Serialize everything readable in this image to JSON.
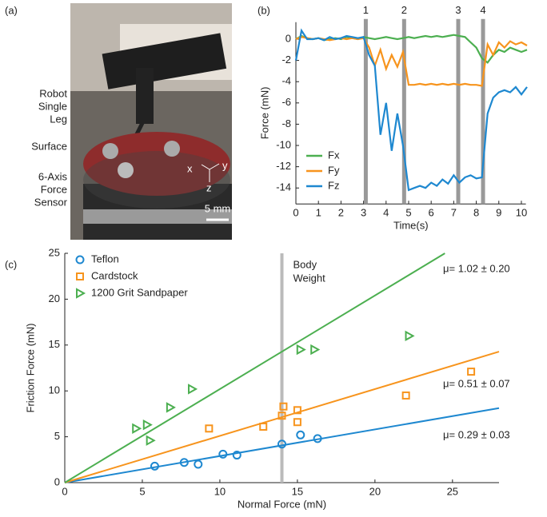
{
  "panel_labels": [
    "(a)",
    "(b)",
    "(c)"
  ],
  "photo": {
    "labels": [
      [
        "Robot",
        "Single",
        "Leg"
      ],
      [
        "Surface"
      ],
      [
        "6-Axis",
        "Force",
        "Sensor"
      ]
    ],
    "axes": [
      "x",
      "y",
      "z"
    ],
    "scale_bar": "5 mm"
  },
  "chart_data": [
    {
      "type": "line",
      "xlabel": "Time(s)",
      "ylabel": "Force (mN)",
      "xlim": [
        0,
        10.2
      ],
      "ylim": [
        -15.5,
        1.6
      ],
      "xticks": [
        0,
        1,
        2,
        3,
        4,
        5,
        6,
        7,
        8,
        9,
        10
      ],
      "yticks": [
        0,
        -2,
        -4,
        -6,
        -8,
        -10,
        -12,
        -14
      ],
      "markers": [
        {
          "value": 3.1,
          "label": "1"
        },
        {
          "value": 4.8,
          "label": "2"
        },
        {
          "value": 7.2,
          "label": "3"
        },
        {
          "value": 8.3,
          "label": "4"
        }
      ],
      "x": [
        0,
        0.25,
        0.5,
        0.75,
        1,
        1.25,
        1.5,
        1.75,
        2,
        2.25,
        2.5,
        2.75,
        3,
        3.25,
        3.5,
        3.75,
        4,
        4.25,
        4.5,
        4.75,
        5,
        5.25,
        5.5,
        5.75,
        6,
        6.25,
        6.5,
        6.75,
        7,
        7.25,
        7.5,
        7.75,
        8,
        8.25,
        8.5,
        8.75,
        9,
        9.25,
        9.5,
        9.75,
        10,
        10.25
      ],
      "series": [
        {
          "name": "Fx",
          "color": "#4caf50",
          "values": [
            0,
            0.3,
            0.1,
            0,
            0.1,
            -0.1,
            0,
            0.1,
            0,
            0.2,
            0.1,
            0,
            0.2,
            0.1,
            0,
            0.1,
            0.2,
            0.1,
            0,
            0.1,
            0.2,
            0.1,
            0.2,
            0.3,
            0.2,
            0.3,
            0.2,
            0.3,
            0.4,
            0.3,
            0.2,
            -0.3,
            -0.8,
            -1.8,
            -2.2,
            -1.5,
            -1.0,
            -1.2,
            -0.8,
            -1.0,
            -1.2,
            -1.0
          ]
        },
        {
          "name": "Fy",
          "color": "#f7941d",
          "values": [
            0,
            0.2,
            0.1,
            0,
            0.1,
            0,
            -0.1,
            0,
            0.1,
            0,
            0.1,
            0,
            0.1,
            -0.8,
            -2.5,
            -1.0,
            -2.8,
            -1.5,
            -2.6,
            -1.2,
            -4.3,
            -4.3,
            -4.2,
            -4.3,
            -4.2,
            -4.3,
            -4.2,
            -4.3,
            -4.2,
            -4.3,
            -4.2,
            -4.3,
            -4.3,
            -4.4,
            -0.5,
            -1.5,
            -0.3,
            -0.8,
            -0.2,
            -0.5,
            -0.3,
            -0.6
          ]
        },
        {
          "name": "Fz",
          "color": "#1e88d0",
          "values": [
            -2,
            0.8,
            0,
            0,
            0.1,
            -0.1,
            0.2,
            0,
            0.1,
            0.3,
            0.2,
            0.1,
            0.2,
            -1.5,
            -2.5,
            -9,
            -6,
            -10.5,
            -7,
            -10,
            -14.2,
            -14,
            -13.8,
            -14,
            -13.5,
            -13.8,
            -13.2,
            -13.6,
            -12.8,
            -13.5,
            -13,
            -12.8,
            -13.1,
            -13,
            -7,
            -5.5,
            -5,
            -4.8,
            -5,
            -4.5,
            -5.2,
            -4.5
          ]
        }
      ]
    },
    {
      "type": "scatter",
      "xlabel": "Normal Force (mN)",
      "ylabel": "Friction Force (mN)",
      "xlim": [
        0,
        28
      ],
      "ylim": [
        0,
        25
      ],
      "xticks": [
        0,
        5,
        10,
        15,
        20,
        25
      ],
      "yticks": [
        0,
        5,
        10,
        15,
        20,
        25
      ],
      "annotation": {
        "x": 14,
        "label_lines": [
          "Body",
          "Weight"
        ]
      },
      "series": [
        {
          "name": "Teflon",
          "color": "#1e88d0",
          "marker": "circle",
          "x": [
            5.8,
            7.7,
            8.6,
            10.2,
            11.1,
            14,
            15.2,
            16.3
          ],
          "values": [
            1.8,
            2.2,
            2.0,
            3.1,
            3.0,
            4.2,
            5.2,
            4.8
          ],
          "fit": {
            "slope": 0.29,
            "label": "μ= 0.29 ± 0.03"
          }
        },
        {
          "name": "Cardstock",
          "color": "#f7941d",
          "marker": "square",
          "x": [
            9.3,
            12.8,
            14.1,
            14,
            15,
            15,
            22,
            26.2
          ],
          "values": [
            5.9,
            6.1,
            8.3,
            7.3,
            7.9,
            6.6,
            9.5,
            12.1
          ],
          "fit": {
            "slope": 0.51,
            "label": "μ= 0.51 ± 0.07"
          }
        },
        {
          "name": "1200 Grit Sandpaper",
          "color": "#4caf50",
          "marker": "triangle",
          "x": [
            4.6,
            5.3,
            5.5,
            6.8,
            8.2,
            15.2,
            16.1,
            22.2
          ],
          "values": [
            5.9,
            6.3,
            4.6,
            8.2,
            10.2,
            14.5,
            14.5,
            16
          ],
          "fit": {
            "slope": 1.02,
            "label": "μ= 1.02 ± 0.20"
          }
        }
      ]
    }
  ]
}
